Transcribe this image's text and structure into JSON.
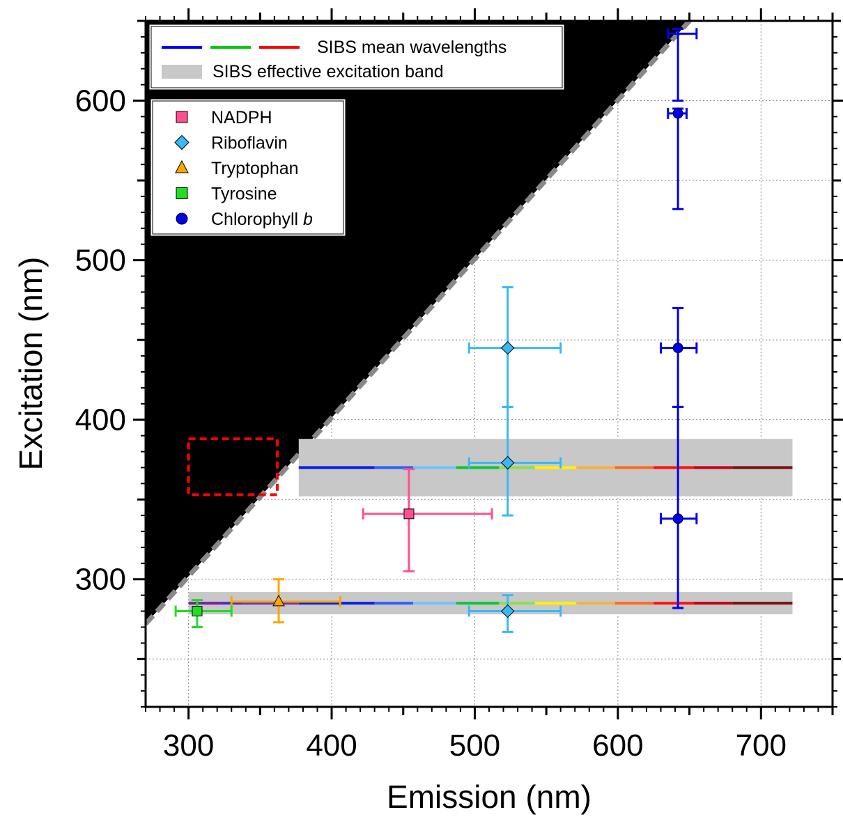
{
  "chart_data": {
    "type": "scatter",
    "xlabel": "Emission (nm)",
    "ylabel": "Excitation (nm)",
    "xlim": [
      270,
      750
    ],
    "ylim": [
      220,
      650
    ],
    "x_ticks": [
      300,
      400,
      500,
      600,
      700
    ],
    "y_ticks": [
      300,
      400,
      500,
      600
    ],
    "x_minor_step": 10,
    "y_minor_step": 10,
    "grid": true,
    "forbidden_region": {
      "description": "excitation > emission",
      "color": "#000000"
    },
    "diagonal_line": {
      "x": [
        270,
        650
      ],
      "y": [
        272,
        650
      ],
      "style": "dashed",
      "color": "#888888"
    },
    "dashed_box": {
      "x": [
        300,
        362
      ],
      "y": [
        353,
        388
      ],
      "color": "#ff0000"
    },
    "sibs_bands": [
      {
        "y_center": 370,
        "y_range": [
          352,
          388
        ],
        "x_range": [
          377,
          722
        ]
      },
      {
        "y_center": 285,
        "y_range": [
          278,
          292
        ],
        "x_range": [
          300,
          722
        ]
      }
    ],
    "sibs_channels": {
      "x_edges": [
        300,
        323,
        338,
        377,
        430,
        457,
        487,
        517,
        542,
        571,
        598,
        625,
        653,
        680,
        722
      ],
      "colors": [
        "#7a1fa0",
        "#4d28c8",
        "#6a2fc4",
        "#0a1ee6",
        "#2d61ff",
        "#6ec4ff",
        "#10c43a",
        "#8ee04a",
        "#fff200",
        "#f5b242",
        "#ff6a1a",
        "#ff1010",
        "#c40018",
        "#7a1010"
      ]
    },
    "series": [
      {
        "name": "NADPH",
        "marker": "square",
        "color": "#ff4f90",
        "points": [
          {
            "x": 454,
            "y": 341,
            "xerr": [
              422,
              512
            ],
            "yerr": [
              305,
              369
            ]
          }
        ]
      },
      {
        "name": "Riboflavin",
        "marker": "diamond",
        "color": "#3ab8f5",
        "points": [
          {
            "x": 523,
            "y": 445,
            "xerr": [
              496,
              560
            ],
            "yerr": [
              408,
              483
            ]
          },
          {
            "x": 523,
            "y": 373,
            "xerr": [
              496,
              560
            ],
            "yerr": [
              340,
              408
            ]
          },
          {
            "x": 523,
            "y": 280,
            "xerr": [
              496,
              560
            ],
            "yerr": [
              267,
              290
            ]
          }
        ]
      },
      {
        "name": "Tryptophan",
        "marker": "triangle",
        "color": "#ffa500",
        "points": [
          {
            "x": 363,
            "y": 286,
            "xerr": [
              330,
              406
            ],
            "yerr": [
              273,
              300
            ]
          }
        ]
      },
      {
        "name": "Tyrosine",
        "marker": "square",
        "color": "#22dd22",
        "points": [
          {
            "x": 306,
            "y": 280,
            "xerr": [
              291,
              330
            ],
            "yerr": [
              270,
              287
            ]
          }
        ]
      },
      {
        "name": "Chlorophyll b",
        "marker": "circle",
        "color": "#0000ee",
        "points": [
          {
            "x": 642,
            "y": 592,
            "xerr": [
              635,
              648
            ],
            "yerr": [
              532,
              595
            ]
          },
          {
            "x": 642,
            "y": 445,
            "xerr": [
              630,
              655
            ],
            "yerr": [
              408,
              470
            ]
          },
          {
            "x": 642,
            "y": 338,
            "xerr": [
              630,
              655
            ],
            "yerr": [
              282,
              408
            ]
          }
        ]
      },
      {
        "name": "Chlorophyll b",
        "marker": "none",
        "color": "#0000ee",
        "points": [
          {
            "x": 642,
            "y": 642,
            "xerr": [
              635,
              655
            ],
            "yerr": [
              600,
              645
            ]
          }
        ]
      }
    ],
    "legend_top": {
      "position": "top-left",
      "entries": [
        {
          "label": "SIBS mean wavelengths",
          "style": "dashed-multicolor",
          "colors": [
            "#0000ff",
            "#00cc00",
            "#ff0000"
          ]
        },
        {
          "label": "SIBS effective excitation band",
          "style": "band",
          "color": "#c8c8c8"
        }
      ]
    },
    "legend_markers": {
      "position": "upper-left",
      "entries": [
        {
          "label": "NADPH",
          "marker": "square",
          "color": "#ff4f90"
        },
        {
          "label": "Riboflavin",
          "marker": "diamond",
          "color": "#3ab8f5"
        },
        {
          "label": "Tryptophan",
          "marker": "triangle",
          "color": "#ffa500"
        },
        {
          "label": "Tyrosine",
          "marker": "square",
          "color": "#22dd22"
        },
        {
          "label": "Chlorophyll ",
          "label_italic": "b",
          "marker": "circle",
          "color": "#0000ee"
        }
      ]
    }
  }
}
